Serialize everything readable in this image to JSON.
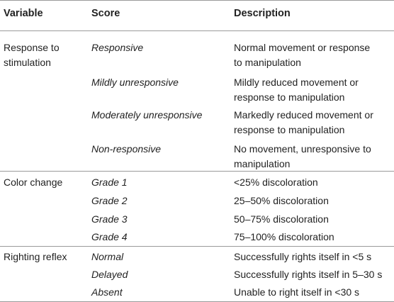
{
  "header": {
    "variable": "Variable",
    "score": "Score",
    "description": "Description"
  },
  "groups": [
    {
      "variable": "Response to stimulation",
      "rows": [
        {
          "score": "Responsive",
          "description": "Normal movement or response to manipulation"
        },
        {
          "score": "Mildly unresponsive",
          "description": "Mildly reduced movement or response to manipulation"
        },
        {
          "score": "Moderately unresponsive",
          "description": "Markedly reduced movement or response to manipulation"
        },
        {
          "score": "Non-responsive",
          "description": "No movement, unresponsive to manipulation"
        }
      ]
    },
    {
      "variable": "Color change",
      "rows": [
        {
          "score": "Grade 1",
          "description": "<25% discoloration"
        },
        {
          "score": "Grade 2",
          "description": "25–50% discoloration"
        },
        {
          "score": "Grade 3",
          "description": "50–75% discoloration"
        },
        {
          "score": "Grade 4",
          "description": "75–100% discoloration"
        }
      ]
    },
    {
      "variable": "Righting reflex",
      "rows": [
        {
          "score": "Normal",
          "description": "Successfully rights itself in <5 s"
        },
        {
          "score": "Delayed",
          "description": "Successfully rights itself in 5–30 s"
        },
        {
          "score": "Absent",
          "description": "Unable to right itself in <30 s"
        }
      ]
    }
  ]
}
